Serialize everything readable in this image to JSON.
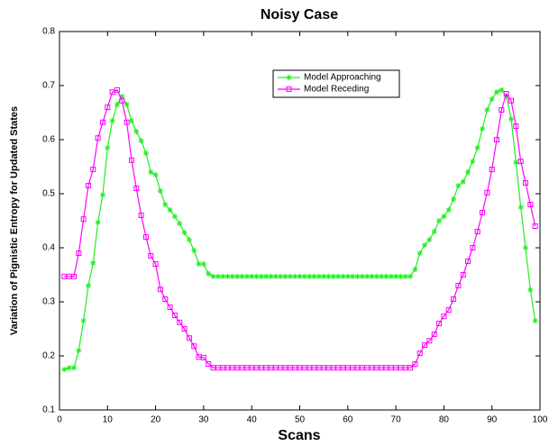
{
  "chart_data": {
    "type": "line",
    "title": "Noisy Case",
    "xlabel": "Scans",
    "ylabel": "Variation of Pignistic Entropy for Updated States",
    "x": [
      1,
      2,
      3,
      4,
      5,
      6,
      7,
      8,
      9,
      10,
      11,
      12,
      13,
      14,
      15,
      16,
      17,
      18,
      19,
      20,
      21,
      22,
      23,
      24,
      25,
      26,
      27,
      28,
      29,
      30,
      31,
      32,
      33,
      34,
      35,
      36,
      37,
      38,
      39,
      40,
      41,
      42,
      43,
      44,
      45,
      46,
      47,
      48,
      49,
      50,
      51,
      52,
      53,
      54,
      55,
      56,
      57,
      58,
      59,
      60,
      61,
      62,
      63,
      64,
      65,
      66,
      67,
      68,
      69,
      70,
      71,
      72,
      73,
      74,
      75,
      76,
      77,
      78,
      79,
      80,
      81,
      82,
      83,
      84,
      85,
      86,
      87,
      88,
      89,
      90,
      91,
      92,
      93,
      94,
      95,
      96,
      97,
      98,
      99
    ],
    "series": [
      {
        "name": "Model Approaching",
        "color": "#22ee22",
        "marker": "star",
        "values": [
          0.175,
          0.178,
          0.178,
          0.21,
          0.265,
          0.33,
          0.372,
          0.447,
          0.498,
          0.585,
          0.635,
          0.665,
          0.68,
          0.665,
          0.635,
          0.615,
          0.598,
          0.575,
          0.54,
          0.535,
          0.505,
          0.48,
          0.47,
          0.458,
          0.445,
          0.428,
          0.415,
          0.395,
          0.37,
          0.37,
          0.352,
          0.347,
          0.347,
          0.347,
          0.347,
          0.347,
          0.347,
          0.347,
          0.347,
          0.347,
          0.347,
          0.347,
          0.347,
          0.347,
          0.347,
          0.347,
          0.347,
          0.347,
          0.347,
          0.347,
          0.347,
          0.347,
          0.347,
          0.347,
          0.347,
          0.347,
          0.347,
          0.347,
          0.347,
          0.347,
          0.347,
          0.347,
          0.347,
          0.347,
          0.347,
          0.347,
          0.347,
          0.347,
          0.347,
          0.347,
          0.347,
          0.347,
          0.347,
          0.36,
          0.39,
          0.405,
          0.415,
          0.43,
          0.45,
          0.458,
          0.47,
          0.49,
          0.515,
          0.522,
          0.54,
          0.56,
          0.585,
          0.62,
          0.655,
          0.675,
          0.688,
          0.692,
          0.68,
          0.638,
          0.558,
          0.475,
          0.4,
          0.322,
          0.265
        ]
      },
      {
        "name": "Model Receding",
        "color": "#ff00ff",
        "marker": "square",
        "values": [
          0.347,
          0.347,
          0.347,
          0.39,
          0.453,
          0.515,
          0.545,
          0.603,
          0.632,
          0.66,
          0.688,
          0.692,
          0.672,
          0.632,
          0.562,
          0.51,
          0.46,
          0.42,
          0.385,
          0.37,
          0.323,
          0.305,
          0.29,
          0.275,
          0.262,
          0.25,
          0.233,
          0.218,
          0.198,
          0.197,
          0.185,
          0.178,
          0.178,
          0.178,
          0.178,
          0.178,
          0.178,
          0.178,
          0.178,
          0.178,
          0.178,
          0.178,
          0.178,
          0.178,
          0.178,
          0.178,
          0.178,
          0.178,
          0.178,
          0.178,
          0.178,
          0.178,
          0.178,
          0.178,
          0.178,
          0.178,
          0.178,
          0.178,
          0.178,
          0.178,
          0.178,
          0.178,
          0.178,
          0.178,
          0.178,
          0.178,
          0.178,
          0.178,
          0.178,
          0.178,
          0.178,
          0.178,
          0.178,
          0.185,
          0.205,
          0.22,
          0.228,
          0.24,
          0.26,
          0.273,
          0.285,
          0.305,
          0.33,
          0.35,
          0.375,
          0.4,
          0.43,
          0.465,
          0.502,
          0.545,
          0.6,
          0.655,
          0.685,
          0.672,
          0.625,
          0.56,
          0.52,
          0.48,
          0.44
        ]
      }
    ],
    "xlim": [
      0,
      100
    ],
    "xticks": [
      0,
      10,
      20,
      30,
      40,
      50,
      60,
      70,
      80,
      90,
      100
    ],
    "ylim": [
      0.1,
      0.8
    ],
    "yticks": [
      0.1,
      0.2,
      0.3,
      0.4,
      0.5,
      0.6,
      0.7,
      0.8
    ],
    "grid": false
  }
}
